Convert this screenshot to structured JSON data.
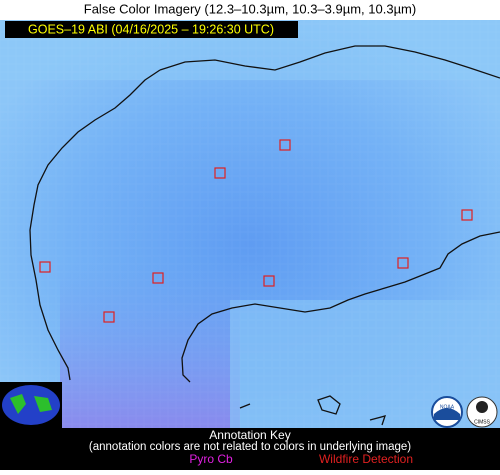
{
  "header": {
    "title": "False Color Imagery (12.3–10.3µm, 10.3–3.9µm, 10.3µm)",
    "subtitle": "GOES–19 ABI (04/16/2025 – 19:26:30 UTC)"
  },
  "annotation_key": {
    "title": "Annotation Key",
    "note": "(annotation colors are not related to colors in underlying image)",
    "items": [
      "Pyro Cb",
      "Wildfire Detection"
    ]
  },
  "logos": [
    "NOAA",
    "CIMSS"
  ]
}
